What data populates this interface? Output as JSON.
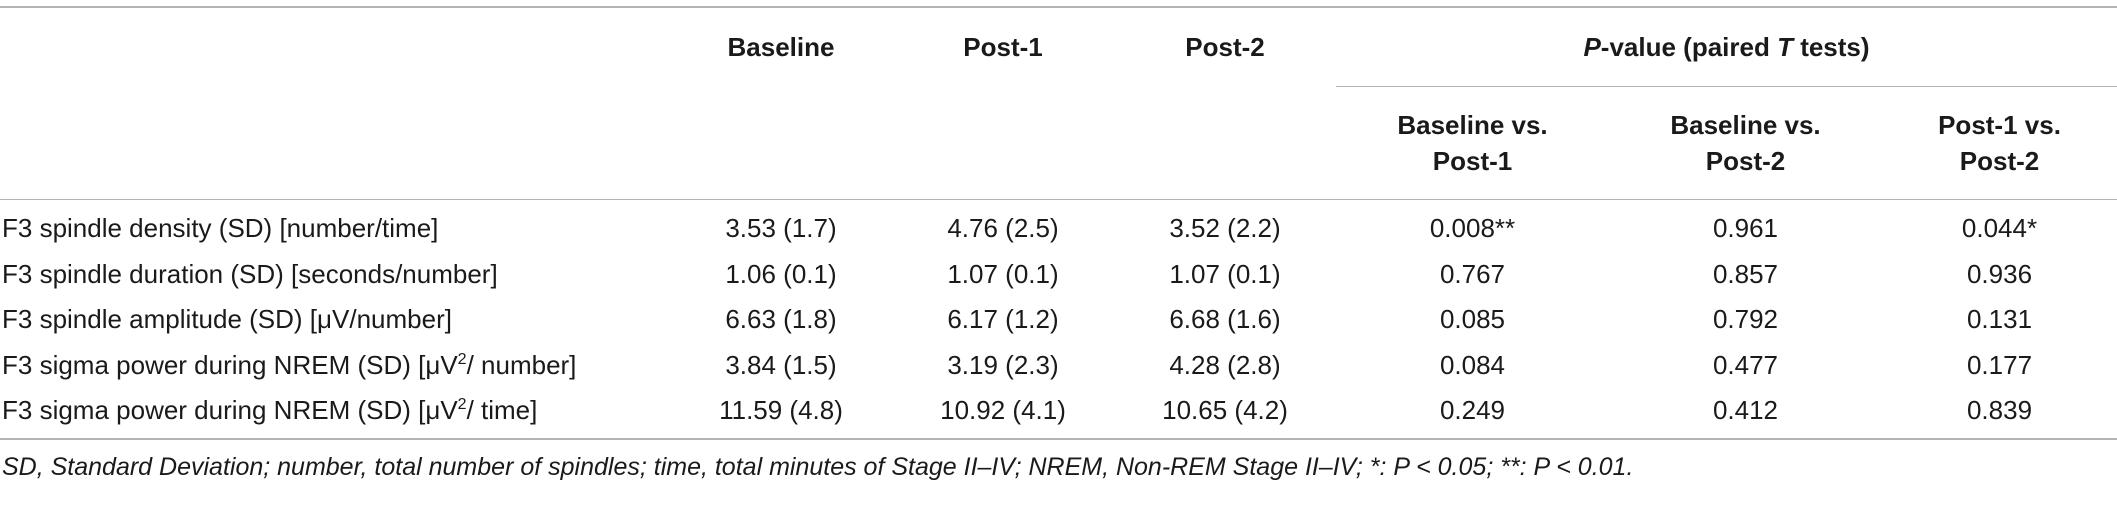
{
  "table": {
    "headers": {
      "baseline": "Baseline",
      "post1": "Post-1",
      "post2": "Post-2",
      "pvalue_group_italic_p": "P",
      "pvalue_group_mid": "-value (paired ",
      "pvalue_group_italic_t": "T",
      "pvalue_group_end": " tests)",
      "sub": [
        {
          "line1": "Baseline vs.",
          "line2": "Post-1"
        },
        {
          "line1": "Baseline vs.",
          "line2": "Post-2"
        },
        {
          "line1": "Post-1 vs.",
          "line2": "Post-2"
        }
      ]
    },
    "rows": [
      {
        "label_pre": "F3 spindle density (SD) [number/time]",
        "label_sup": "",
        "label_post": "",
        "cells": [
          "3.53 (1.7)",
          "4.76 (2.5)",
          "3.52 (2.2)",
          "0.008**",
          "0.961",
          "0.044*"
        ]
      },
      {
        "label_pre": "F3 spindle duration (SD) [seconds/number]",
        "label_sup": "",
        "label_post": "",
        "cells": [
          "1.06 (0.1)",
          "1.07 (0.1)",
          "1.07 (0.1)",
          "0.767",
          "0.857",
          "0.936"
        ]
      },
      {
        "label_pre": "F3 spindle amplitude (SD) [μV/number]",
        "label_sup": "",
        "label_post": "",
        "cells": [
          "6.63 (1.8)",
          "6.17 (1.2)",
          "6.68 (1.6)",
          "0.085",
          "0.792",
          "0.131"
        ]
      },
      {
        "label_pre": "F3 sigma power during NREM (SD) [μV",
        "label_sup": "2",
        "label_post": "/ number]",
        "cells": [
          "3.84 (1.5)",
          "3.19 (2.3)",
          "4.28 (2.8)",
          "0.084",
          "0.477",
          "0.177"
        ]
      },
      {
        "label_pre": "F3 sigma power during NREM (SD) [μV",
        "label_sup": "2",
        "label_post": "/ time]",
        "cells": [
          "11.59 (4.8)",
          "10.92 (4.1)",
          "10.65 (4.2)",
          "0.249",
          "0.412",
          "0.839"
        ]
      }
    ]
  },
  "footnote": "SD, Standard Deviation; number, total number of spindles; time, total minutes of Stage II–IV; NREM, Non-REM Stage II–IV; *: P < 0.05; **: P < 0.01."
}
